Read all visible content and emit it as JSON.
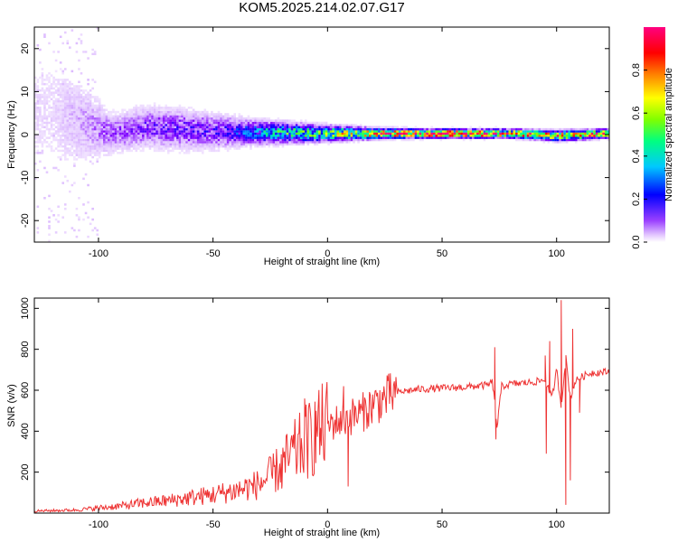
{
  "title": "KOM5.2025.214.02.07.G17",
  "chart_data": [
    {
      "type": "heatmap",
      "xlabel": "Height of straight line (km)",
      "ylabel": "Frequency (Hz)",
      "xlim": [
        -128,
        123
      ],
      "ylim": [
        -25,
        25
      ],
      "xticks": [
        -100,
        -50,
        0,
        50,
        100
      ],
      "yticks": [
        -20,
        -10,
        0,
        10,
        20
      ],
      "colorbar": {
        "label": "Normalized spectral amplitude",
        "range": [
          0,
          1
        ],
        "ticks": [
          "0.0",
          "0.2",
          "0.4",
          "0.6",
          "0.8"
        ],
        "colors": [
          "#ffffff",
          "#d9b3ff",
          "#8000ff",
          "#0000ff",
          "#00c0ff",
          "#00ff80",
          "#80ff00",
          "#ffff00",
          "#ff8000",
          "#ff0000",
          "#ff0080"
        ]
      },
      "band": [
        {
          "x": -120,
          "center": 5,
          "spread": 12,
          "amp": 0.05
        },
        {
          "x": -95,
          "center": 0,
          "spread": 4,
          "amp": 0.15
        },
        {
          "x": -80,
          "center": 1.5,
          "spread": 4,
          "amp": 0.18
        },
        {
          "x": -65,
          "center": 1,
          "spread": 4,
          "amp": 0.2
        },
        {
          "x": -50,
          "center": 0.5,
          "spread": 3.5,
          "amp": 0.2
        },
        {
          "x": -35,
          "center": 0.3,
          "spread": 2.5,
          "amp": 0.3
        },
        {
          "x": -20,
          "center": 0.2,
          "spread": 2,
          "amp": 0.45
        },
        {
          "x": 0,
          "center": 0,
          "spread": 1.5,
          "amp": 0.55
        },
        {
          "x": 20,
          "center": 0,
          "spread": 1,
          "amp": 0.75
        },
        {
          "x": 40,
          "center": 0,
          "spread": 0.8,
          "amp": 0.9
        },
        {
          "x": 60,
          "center": 0,
          "spread": 0.8,
          "amp": 0.95
        },
        {
          "x": 80,
          "center": 0,
          "spread": 0.8,
          "amp": 0.85
        },
        {
          "x": 100,
          "center": -0.5,
          "spread": 1,
          "amp": 0.7
        },
        {
          "x": 123,
          "center": 0,
          "spread": 0.8,
          "amp": 0.9
        }
      ]
    },
    {
      "type": "line",
      "xlabel": "Height of straight line (km)",
      "ylabel": "SNR (v/v)",
      "xlim": [
        -128,
        123
      ],
      "ylim": [
        0,
        1050
      ],
      "xticks": [
        -100,
        -50,
        0,
        50,
        100
      ],
      "yticks": [
        200,
        400,
        600,
        800,
        1000
      ],
      "color": "#ee3333",
      "x": [
        -128,
        -110,
        -100,
        -90,
        -80,
        -70,
        -60,
        -50,
        -40,
        -30,
        -25,
        -20,
        -15,
        -10,
        -5,
        0,
        5,
        10,
        15,
        20,
        25,
        30,
        40,
        50,
        60,
        70,
        72,
        74,
        76,
        80,
        90,
        95,
        98,
        100,
        102,
        104,
        106,
        108,
        110,
        115,
        123
      ],
      "y": [
        10,
        15,
        25,
        35,
        50,
        60,
        75,
        90,
        110,
        140,
        180,
        230,
        290,
        340,
        390,
        430,
        450,
        470,
        490,
        530,
        560,
        590,
        605,
        610,
        615,
        625,
        640,
        420,
        620,
        630,
        640,
        650,
        560,
        700,
        520,
        760,
        560,
        640,
        660,
        685,
        690
      ],
      "spikes": [
        {
          "x": -20,
          "y": 120
        },
        {
          "x": -10,
          "y": 560
        },
        {
          "x": -5,
          "y": 500
        },
        {
          "x": 7,
          "y": 620
        },
        {
          "x": 9,
          "y": 130
        },
        {
          "x": 73,
          "y": 810
        },
        {
          "x": 73.5,
          "y": 360
        },
        {
          "x": 95,
          "y": 770
        },
        {
          "x": 97,
          "y": 840
        },
        {
          "x": 95.5,
          "y": 290
        },
        {
          "x": 102,
          "y": 1040
        },
        {
          "x": 104,
          "y": 40
        },
        {
          "x": 107,
          "y": 900
        },
        {
          "x": 106,
          "y": 160
        },
        {
          "x": 110,
          "y": 490
        }
      ]
    }
  ]
}
